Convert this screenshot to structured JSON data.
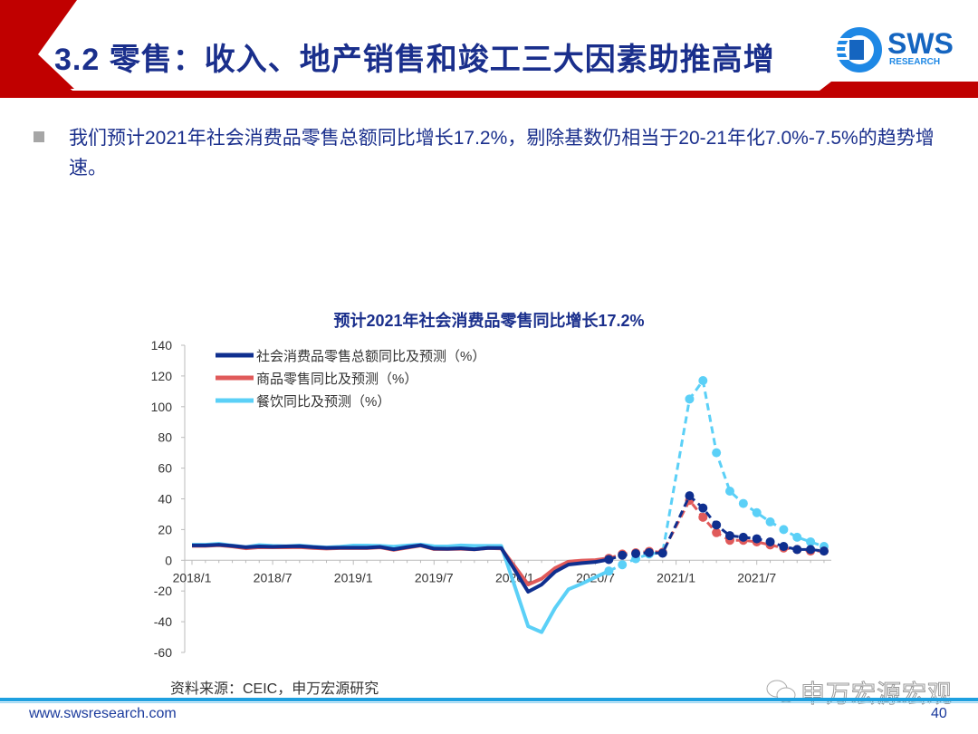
{
  "header": {
    "title": "3.2 零售：收入、地产销售和竣工三大因素助推高增",
    "logo_text": "SWS",
    "logo_sub": "RESEARCH"
  },
  "body": {
    "bullet_text": "我们预计2021年社会消费品零售总额同比增长17.2%，剔除基数仍相当于20-21年化7.0%-7.5%的趋势增速。"
  },
  "colors": {
    "brand_red": "#c00000",
    "title_blue": "#1a2f8c",
    "total": "#0f2f8f",
    "goods": "#e05a5a",
    "catering": "#5bd0f7"
  },
  "chart_data": {
    "type": "line",
    "title": "预计2021年社会消费品零售同比增长17.2%",
    "xlabel": "",
    "ylabel": "",
    "ylim": [
      -60,
      140
    ],
    "yticks": [
      140,
      120,
      100,
      80,
      60,
      40,
      20,
      0,
      -20,
      -40,
      -60
    ],
    "x_start": "2018/1",
    "x_end": "2021/12",
    "frequency": "monthly",
    "xtick_labels": [
      "2018/1",
      "2018/7",
      "2019/1",
      "2019/7",
      "2020/1",
      "2020/7",
      "2021/1",
      "2021/7"
    ],
    "xtick_indices": [
      0,
      6,
      12,
      18,
      24,
      30,
      36,
      42
    ],
    "forecast_start_index": 31,
    "legend_position": "top-left",
    "grid": false,
    "series": [
      {
        "name": "社会消费品零售总额同比及预测（%）",
        "color": "#0f2f8f",
        "values": [
          9.7,
          9.7,
          10.1,
          9.4,
          8.5,
          9.0,
          8.8,
          9.0,
          9.2,
          8.6,
          8.1,
          8.2,
          8.2,
          8.2,
          8.7,
          7.2,
          8.6,
          9.8,
          7.6,
          7.5,
          7.8,
          7.2,
          8.0,
          8.0,
          null,
          -20.5,
          -15.8,
          -7.5,
          -2.8,
          -1.8,
          -1.1,
          0.5,
          3.3,
          4.3,
          5.0,
          4.6,
          null,
          42,
          34,
          23,
          16,
          15,
          14,
          12,
          9,
          7,
          7,
          6
        ]
      },
      {
        "name": "商品零售同比及预测（%）",
        "color": "#e05a5a",
        "values": [
          9.4,
          9.4,
          9.8,
          9.0,
          7.8,
          8.5,
          8.4,
          8.4,
          8.6,
          8.0,
          7.6,
          7.9,
          7.9,
          7.9,
          8.4,
          6.8,
          8.2,
          9.6,
          7.3,
          7.3,
          7.5,
          7.1,
          8.0,
          7.7,
          null,
          -15.8,
          -12.0,
          -5.1,
          -0.9,
          -0.2,
          0.1,
          1.3,
          4.1,
          4.9,
          5.8,
          5.2,
          null,
          39,
          28,
          18,
          13,
          13,
          12,
          10,
          8,
          7,
          6,
          6
        ]
      },
      {
        "name": "餐饮同比及预测（%）",
        "color": "#5bd0f7",
        "values": [
          10.1,
          10.1,
          10.7,
          9.6,
          8.6,
          9.9,
          9.4,
          9.2,
          9.6,
          8.9,
          8.4,
          8.8,
          9.6,
          9.6,
          9.4,
          8.9,
          9.6,
          10.2,
          9.1,
          9.0,
          9.7,
          9.4,
          9.4,
          9.4,
          null,
          -43,
          -46.8,
          -31.1,
          -18.9,
          -15.2,
          -11.0,
          -7.0,
          -2.9,
          1.0,
          4.1,
          5.0,
          null,
          105,
          117,
          70,
          45,
          37,
          31,
          25,
          20,
          15,
          12,
          9
        ]
      }
    ]
  },
  "source": "资料来源：CEIC，申万宏源研究",
  "footer": {
    "url": "www.swsresearch.com",
    "page": "40",
    "watermark": "申万宏源宏观"
  }
}
